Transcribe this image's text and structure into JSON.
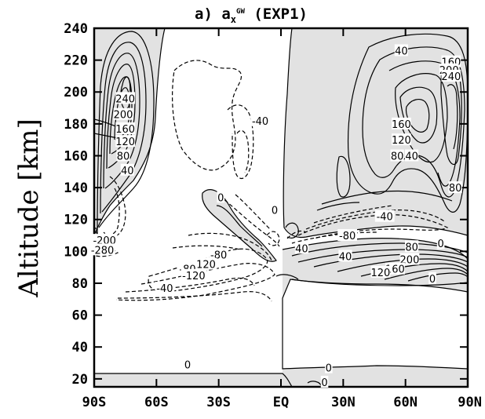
{
  "chart_data": {
    "type": "contour",
    "title": "a)  a",
    "title_sub": "x",
    "title_sup": "GW",
    "title_suffix": " (EXP1)",
    "ylabel": "Altitude [km]",
    "xlabel": "",
    "x_ticks": [
      "90S",
      "60S",
      "30S",
      "EQ",
      "30N",
      "60N",
      "90N"
    ],
    "x_values": [
      -90,
      -60,
      -30,
      0,
      30,
      60,
      90
    ],
    "xlim": [
      -90,
      90
    ],
    "y_ticks": [
      "20",
      "40",
      "60",
      "80",
      "100",
      "120",
      "140",
      "160",
      "180",
      "200",
      "220",
      "240"
    ],
    "y_values": [
      20,
      40,
      60,
      80,
      100,
      120,
      140,
      160,
      180,
      200,
      220,
      240
    ],
    "ylim": [
      15,
      240
    ],
    "shading": "positive values shaded light gray",
    "contour_labels": [
      {
        "text": "240",
        "lat": -75,
        "alt": 196
      },
      {
        "text": "200",
        "lat": -76,
        "alt": 186
      },
      {
        "text": "160",
        "lat": -75,
        "alt": 177
      },
      {
        "text": "120",
        "lat": -75,
        "alt": 169
      },
      {
        "text": "80",
        "lat": -76,
        "alt": 160
      },
      {
        "text": "40",
        "lat": -74,
        "alt": 151
      },
      {
        "text": "-200",
        "lat": -85,
        "alt": 107
      },
      {
        "text": "-280",
        "lat": -86,
        "alt": 101
      },
      {
        "text": "-40",
        "lat": -10,
        "alt": 182
      },
      {
        "text": "0",
        "lat": -29,
        "alt": 134
      },
      {
        "text": "0",
        "lat": -3,
        "alt": 126
      },
      {
        "text": "-80",
        "lat": -30,
        "alt": 98
      },
      {
        "text": "-120",
        "lat": -37,
        "alt": 92
      },
      {
        "text": "-80",
        "lat": -45,
        "alt": 89
      },
      {
        "text": "-120",
        "lat": -42,
        "alt": 85
      },
      {
        "text": "-40",
        "lat": -56,
        "alt": 77
      },
      {
        "text": "40",
        "lat": 58,
        "alt": 226
      },
      {
        "text": "160",
        "lat": 82,
        "alt": 219
      },
      {
        "text": "200",
        "lat": 81,
        "alt": 214
      },
      {
        "text": "240",
        "lat": 82,
        "alt": 210
      },
      {
        "text": "160",
        "lat": 58,
        "alt": 180
      },
      {
        "text": "120",
        "lat": 58,
        "alt": 170
      },
      {
        "text": "80",
        "lat": 56,
        "alt": 160
      },
      {
        "text": "40",
        "lat": 63,
        "alt": 160
      },
      {
        "text": "80",
        "lat": 84,
        "alt": 140
      },
      {
        "text": "-40",
        "lat": 50,
        "alt": 122
      },
      {
        "text": "-80",
        "lat": 32,
        "alt": 110
      },
      {
        "text": "0",
        "lat": 77,
        "alt": 105
      },
      {
        "text": "40",
        "lat": 10,
        "alt": 102
      },
      {
        "text": "40",
        "lat": 31,
        "alt": 97
      },
      {
        "text": "80",
        "lat": 63,
        "alt": 103
      },
      {
        "text": "200",
        "lat": 62,
        "alt": 95
      },
      {
        "text": "160",
        "lat": 55,
        "alt": 89
      },
      {
        "text": "120",
        "lat": 48,
        "alt": 87
      },
      {
        "text": "0",
        "lat": 73,
        "alt": 83
      },
      {
        "text": "0",
        "lat": -45,
        "alt": 29
      },
      {
        "text": "0",
        "lat": 23,
        "alt": 27
      },
      {
        "text": "0",
        "lat": 21,
        "alt": 18
      }
    ]
  }
}
